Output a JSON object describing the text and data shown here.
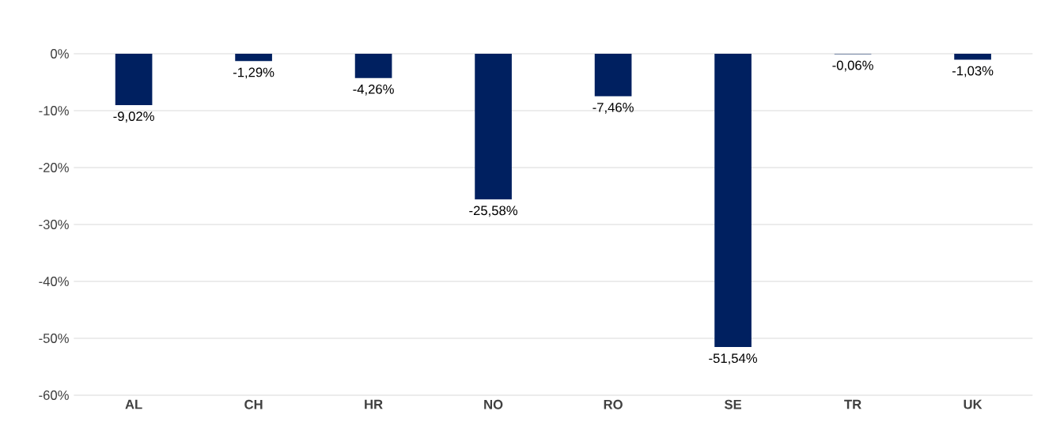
{
  "chart_data": {
    "type": "bar",
    "categories": [
      "AL",
      "CH",
      "HR",
      "NO",
      "RO",
      "SE",
      "TR",
      "UK"
    ],
    "values": [
      -9.02,
      -1.29,
      -4.26,
      -25.58,
      -7.46,
      -51.54,
      -0.06,
      -1.03
    ],
    "value_labels": [
      "-9,02%",
      "-1,29%",
      "-4,26%",
      "-25,58%",
      "-7,46%",
      "-51,54%",
      "-0,06%",
      "-1,03%"
    ],
    "color": "#002060",
    "ylim": [
      -60,
      0
    ],
    "yticks": [
      {
        "value": 0,
        "label": "0%"
      },
      {
        "value": -10,
        "label": "-10%"
      },
      {
        "value": -20,
        "label": "-20%"
      },
      {
        "value": -30,
        "label": "-30%"
      },
      {
        "value": -40,
        "label": "-40%"
      },
      {
        "value": -50,
        "label": "-50%"
      },
      {
        "value": -60,
        "label": "-60%"
      }
    ],
    "grid": "y"
  }
}
